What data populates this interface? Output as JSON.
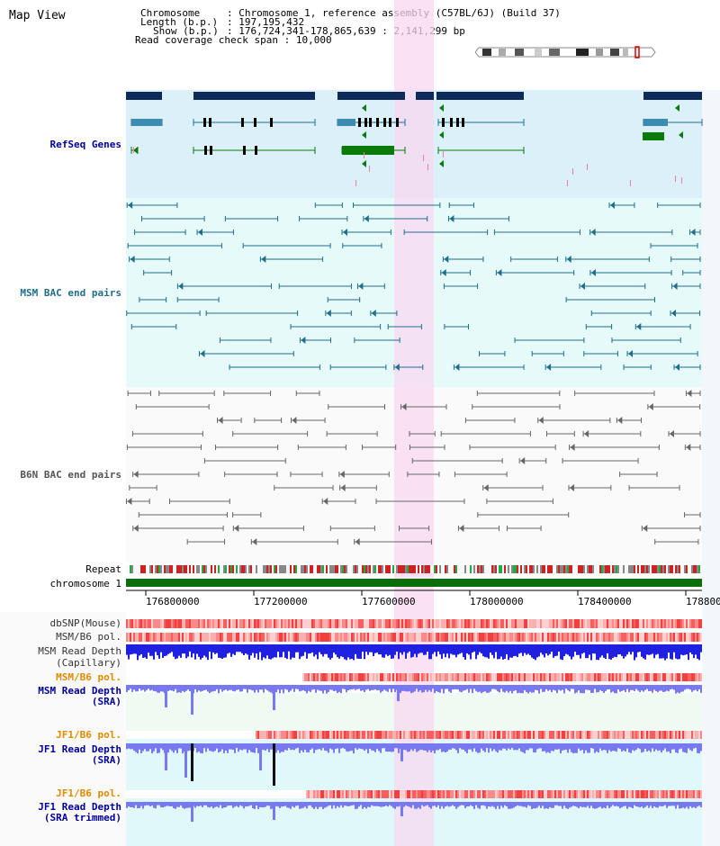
{
  "app": {
    "title": "Map View"
  },
  "info": {
    "chromosome_key": "Chromosome",
    "chromosome_value": "Chromosome 1, reference assembly (C57BL/6J) (Build 37)",
    "length_key": "Length (b.p.)",
    "length_value": "197,195,432",
    "show_key": "Show (b.p.)",
    "show_value": "176,724,341-178,865,639 : 2,141,299 bp",
    "span_key": "Read coverage check span",
    "span_value": "10,000"
  },
  "tracks": {
    "refseq": "RefSeq Genes",
    "msm_bac": "MSM BAC end pairs",
    "b6n_bac": "B6N BAC end pairs",
    "repeat": "Repeat",
    "chromosome": "chromosome 1",
    "dbsnp": "dbSNP(Mouse)",
    "msm_b6_pol": "MSM/B6 pol.",
    "msm_depth_cap_1": "MSM Read Depth",
    "msm_depth_cap_2": "(Capillary)",
    "msm_b6_pol_sra": "MSM/B6 pol.",
    "msm_depth_sra_1": "MSM Read Depth",
    "msm_depth_sra_2": "(SRA)",
    "jf1_b6_pol": "JF1/B6 pol.",
    "jf1_depth_1": "JF1 Read Depth",
    "jf1_depth_2": "(SRA)",
    "jf1_b6_pol_2": "JF1/B6 pol.",
    "jf1_trim_1": "JF1 Read Depth",
    "jf1_trim_2": "(SRA trimmed)"
  },
  "ruler": {
    "ticks": [
      "176800000",
      "177200000",
      "177600000",
      "178000000",
      "178400000",
      "178800"
    ]
  },
  "colors": {
    "refseq_bg": "#dcf0fa",
    "msm_bg": "#e6fafa",
    "b6n_bg": "#fafafa",
    "highlight": "#f8d8f0",
    "gene_dark": "#0d2a5a",
    "gene_mid": "#3c8cb4",
    "gene_green": "#0a7a0a",
    "msm_pair": "#1f6e8c",
    "b6n_pair": "#666666",
    "chromosome_bar": "#0a6e0a",
    "depth_blue": "#2020e0",
    "depth_light": "#7878f0",
    "label_blue": "#000099",
    "label_orange": "#e08a00"
  }
}
